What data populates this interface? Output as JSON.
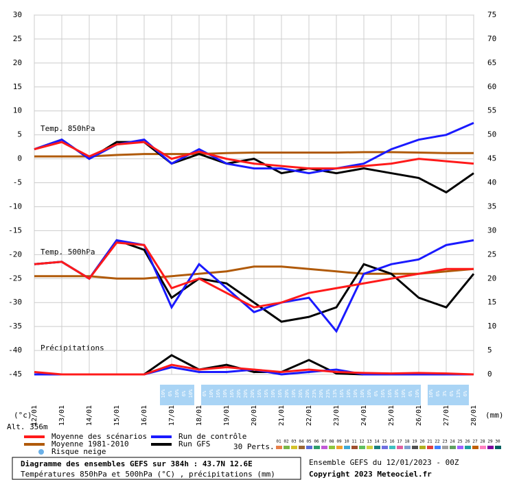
{
  "chart_data": {
    "type": "line",
    "panel_labels": [
      "Temp. 850hPa",
      "Temp. 500hPa",
      "Précipitations"
    ],
    "y_unit_left": "(°c)",
    "y_unit_right": "(mm)",
    "altitude": "Alt. 356m",
    "categories": [
      "12/01",
      "13/01",
      "14/01",
      "15/01",
      "16/01",
      "17/01",
      "18/01",
      "19/01",
      "20/01",
      "21/01",
      "22/01",
      "23/01",
      "24/01",
      "25/01",
      "26/01",
      "27/01",
      "28/01"
    ],
    "ylim": [
      -45,
      30
    ],
    "yticks": [
      -45,
      -40,
      -35,
      -30,
      -25,
      -20,
      -15,
      -10,
      -5,
      0,
      5,
      10,
      15,
      20,
      25,
      30
    ],
    "y2lim": [
      0,
      75
    ],
    "y2ticks": [
      0,
      5,
      10,
      15,
      20,
      25,
      30,
      35,
      40,
      45,
      50,
      55,
      60,
      65,
      70,
      75
    ],
    "grid": true,
    "series": [
      {
        "name": "Moyenne 1981-2010",
        "color": "#b05a0a",
        "values": [
          0.5,
          0.5,
          0.5,
          0.8,
          1,
          1,
          1,
          1.2,
          1.3,
          1.3,
          1.3,
          1.3,
          1.4,
          1.4,
          1.3,
          1.2,
          1.2
        ]
      },
      {
        "name": "Run GFS",
        "color": "#000000",
        "values": [
          2,
          4,
          0,
          3.5,
          3.5,
          -1,
          1,
          -1,
          0,
          -3,
          -2,
          -3,
          -2,
          -3,
          -4,
          -7,
          -3
        ]
      },
      {
        "name": "Run de contrôle",
        "color": "#1a1aff",
        "values": [
          2,
          4,
          0,
          3,
          4,
          -1,
          2,
          -1,
          -2,
          -2,
          -3,
          -2,
          -1,
          2,
          4,
          5,
          7.5
        ]
      },
      {
        "name": "Moyenne des scénarios",
        "color": "#ff1a1a",
        "values": [
          2,
          3.5,
          0.5,
          3,
          3.5,
          0,
          1.5,
          0,
          -1,
          -1.5,
          -2,
          -2,
          -1.5,
          -1,
          0,
          -0.5,
          -1
        ]
      },
      {
        "name": "Moyenne 1981-2010",
        "color": "#b05a0a",
        "values": [
          -24.5,
          -24.5,
          -24.5,
          -25,
          -25,
          -24.5,
          -24,
          -23.5,
          -22.5,
          -22.5,
          -23,
          -23.5,
          -24,
          -24,
          -24,
          -23.5,
          -23
        ]
      },
      {
        "name": "Run GFS",
        "color": "#000000",
        "values": [
          -22,
          -21.5,
          -25,
          -17,
          -19,
          -29,
          -25,
          -26,
          -30,
          -34,
          -33,
          -31,
          -22,
          -24,
          -29,
          -31,
          -24
        ]
      },
      {
        "name": "Run de contrôle",
        "color": "#1a1aff",
        "values": [
          -22,
          -21.5,
          -25,
          -17,
          -18,
          -31,
          -22,
          -27,
          -32,
          -30,
          -29,
          -36,
          -24,
          -22,
          -21,
          -18,
          -17
        ]
      },
      {
        "name": "Moyenne des scénarios",
        "color": "#ff1a1a",
        "values": [
          -22,
          -21.5,
          -25,
          -17.5,
          -18,
          -27,
          -25,
          -28,
          -31,
          -30,
          -28,
          -27,
          -26,
          -25,
          -24,
          -23,
          -23
        ]
      },
      {
        "name": "Run GFS",
        "color": "#000000",
        "axis": "y2",
        "values": [
          0,
          0,
          0,
          0,
          0,
          4,
          1,
          2,
          0.5,
          0.5,
          3,
          0.2,
          0,
          0,
          0,
          0,
          0
        ]
      },
      {
        "name": "Run de contrôle",
        "color": "#1a1aff",
        "axis": "y2",
        "values": [
          0,
          0,
          0,
          0,
          0,
          1.5,
          0.5,
          0.5,
          1,
          0,
          0.5,
          1,
          0,
          0,
          0,
          0,
          0
        ]
      },
      {
        "name": "Moyenne des scénarios",
        "color": "#ff1a1a",
        "axis": "y2",
        "values": [
          0.5,
          0,
          0,
          0,
          0,
          2,
          1,
          1.5,
          1,
          0.5,
          1,
          0.5,
          0.3,
          0.2,
          0.3,
          0.2,
          0
        ]
      }
    ],
    "legend": [
      "Moyenne des scénarios",
      "Moyenne 1981-2010",
      "Risque neige",
      "Run de contrôle",
      "Run GFS"
    ],
    "snow_risk": [
      {
        "start": 4.7,
        "labels": [
          "10%",
          "6%",
          "10%",
          "6%",
          "10%"
        ]
      },
      {
        "start": 6.2,
        "labels": [
          "6%",
          "10%",
          "16%",
          "10%",
          "16%",
          "20%",
          "20%",
          "20%",
          "16%",
          "16%",
          "10%",
          "16%",
          "20%",
          "10%",
          "26%",
          "20%",
          "23%",
          "20%",
          "23%",
          "13%",
          "16%",
          "10%",
          "10%",
          "10%",
          "10%",
          "6%",
          "16%",
          "16%",
          "10%",
          "10%",
          "6%",
          "10%"
        ]
      },
      {
        "start": 14.45,
        "labels": [
          "10%",
          "6%",
          "3%",
          "6%",
          "13%",
          "6%"
        ]
      }
    ],
    "perts_label": "30 Perts.",
    "perts": [
      "01",
      "02",
      "03",
      "04",
      "05",
      "06",
      "07",
      "08",
      "09",
      "10",
      "11",
      "12",
      "13",
      "14",
      "15",
      "16",
      "17",
      "18",
      "19",
      "20",
      "21",
      "22",
      "23",
      "24",
      "25",
      "26",
      "27",
      "28",
      "29",
      "30"
    ],
    "pert_colors": [
      "#e8804a",
      "#7ab648",
      "#d4c22a",
      "#996633",
      "#5a6bd6",
      "#2e9e6a",
      "#c25ad6",
      "#8cc63f",
      "#f0a030",
      "#3fa9d6",
      "#a05030",
      "#60c060",
      "#d0d040",
      "#1a8080",
      "#7070e0",
      "#40c0c0",
      "#e060a0",
      "#80a0d0",
      "#505050",
      "#b0b020",
      "#e04040",
      "#4080ff",
      "#a0a0a0",
      "#60a060",
      "#a060ff",
      "#20a0a0",
      "#c06000",
      "#ff80c0",
      "#8000a0",
      "#006060"
    ],
    "title": "Diagramme des ensembles GEFS sur 384h : 43.7N 12.6E",
    "subtitle": "Températures 850hPa et 500hPa (°C) , précipitations (mm)",
    "run_info": "Ensemble GEFS du 12/01/2023 - 00Z",
    "copyright": "Copyright 2023 Meteociel.fr"
  }
}
